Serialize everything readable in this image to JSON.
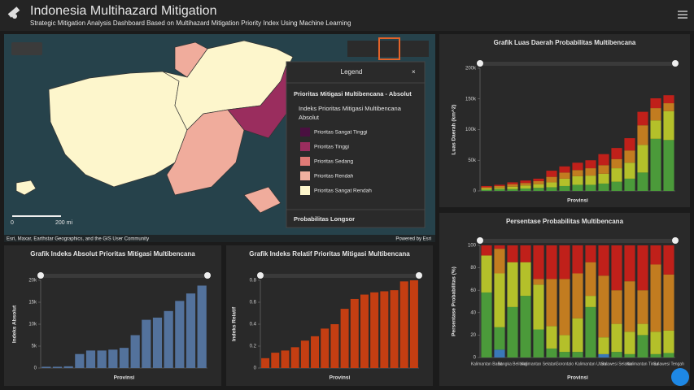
{
  "header": {
    "title": "Indonesia Multihazard Mitigation",
    "subtitle": "Strategic Mitigation Analysis Dashboard Based on Multihazard Mitigation Priority Index Using Machine Learning"
  },
  "map": {
    "attribution": "Esri, Maxar, Earthstar Geographics, and the GIS User Community",
    "powered": "Powered by Esri",
    "scale_start": "0",
    "scale_end": "200 mi"
  },
  "legend": {
    "title": "Legend",
    "layer": "Prioritas Mitigasi Multibencana - Absolut",
    "field": [
      "Indeks Prioritas Mitigasi Multibencana",
      "Absolut"
    ],
    "items": [
      "Prioritas Sangat Tinggi",
      "Prioritas Tinggi",
      "Prioritas Sedang",
      "Prioritas Rendah",
      "Prioritas Sangat Rendah"
    ],
    "next_layer": "Probabilitas Longsor"
  },
  "chart_data": [
    {
      "type": "bar",
      "title": "Grafik Luas Daerah Probabilitas Multibencana",
      "y_label": "Luas Daerah (km^2)",
      "x_label": "Provinsi",
      "ylim": [
        0,
        200000
      ],
      "yticks": [
        0,
        {
          "value": 50000,
          "label": "50k"
        },
        {
          "value": 100000,
          "label": "100k"
        },
        {
          "value": 150000,
          "label": "150k"
        },
        {
          "value": 200000,
          "label": "200k"
        }
      ],
      "series": [
        {
          "color": "#4b9a3a",
          "values": [
            2000,
            3000,
            3000,
            4000,
            5000,
            6000,
            8000,
            10000,
            10000,
            12000,
            15000,
            20000,
            30000,
            85000,
            83000
          ]
        },
        {
          "color": "#b4c02a",
          "values": [
            2000,
            2000,
            4000,
            5000,
            6000,
            8000,
            12000,
            14000,
            15000,
            16000,
            22000,
            26000,
            45000,
            30000,
            47000
          ]
        },
        {
          "color": "#c27c20",
          "values": [
            2000,
            3000,
            4000,
            4000,
            5000,
            9000,
            10000,
            10000,
            12000,
            14000,
            15000,
            20000,
            32000,
            20000,
            13000
          ]
        },
        {
          "color": "#c0201a",
          "values": [
            2000,
            2000,
            3000,
            4000,
            4000,
            10000,
            10000,
            12000,
            13000,
            18000,
            18000,
            20000,
            22000,
            16000,
            13000
          ]
        }
      ]
    },
    {
      "type": "bar",
      "title": "Persentase Probabilitas Multibencana",
      "y_label": "Persentase Probabilitas (%)",
      "x_label": "Provinsi",
      "categories": [
        "Kalimantan Barat",
        null,
        "Bangka Belitung",
        null,
        "Kalimantan Selatan",
        null,
        "Gorontalo",
        null,
        "Kalimantan Utara",
        null,
        "Sulawesi Selatan",
        null,
        "Kalimantan Timur",
        null,
        "Sulawesi Tengah"
      ],
      "ylim": [
        0,
        100
      ],
      "yticks": [
        0,
        20,
        40,
        60,
        80,
        100
      ],
      "series": [
        {
          "color": "#3a78b8",
          "values": [
            0,
            7,
            0,
            0,
            0,
            0,
            0,
            0,
            0,
            3,
            0,
            0,
            0,
            0,
            0
          ]
        },
        {
          "color": "#4b9a3a",
          "values": [
            58,
            20,
            45,
            55,
            25,
            8,
            5,
            5,
            45,
            0,
            5,
            3,
            20,
            3,
            4
          ]
        },
        {
          "color": "#b4c02a",
          "values": [
            33,
            48,
            40,
            30,
            40,
            20,
            15,
            30,
            10,
            15,
            25,
            20,
            10,
            20,
            20
          ]
        },
        {
          "color": "#c27c20",
          "values": [
            0,
            22,
            0,
            0,
            5,
            42,
            50,
            40,
            30,
            55,
            30,
            45,
            30,
            60,
            50
          ]
        },
        {
          "color": "#c0201a",
          "values": [
            9,
            3,
            15,
            15,
            30,
            30,
            30,
            25,
            15,
            27,
            40,
            32,
            40,
            17,
            26
          ]
        }
      ]
    },
    {
      "type": "bar",
      "title": "Grafik Indeks Absolut Prioritas Mitigasi Multibencana",
      "y_label": "Indeks Absolut",
      "x_label": "Provinsi",
      "ylim": [
        0,
        20000
      ],
      "yticks": [
        0,
        {
          "value": 5000,
          "label": "5k"
        },
        {
          "value": 10000,
          "label": "10k"
        },
        {
          "value": 15000,
          "label": "15k"
        },
        {
          "value": 20000,
          "label": "20k"
        }
      ],
      "color": "#53729c",
      "values": [
        300,
        300,
        400,
        3200,
        4000,
        4000,
        4200,
        4600,
        7500,
        11000,
        11500,
        13000,
        15300,
        17000,
        18800
      ]
    },
    {
      "type": "bar",
      "title": "Grafik Indeks Relatif Prioritas Mitigasi Multibencana",
      "y_label": "Indeks Relatif",
      "x_label": "Provinsi",
      "ylim": [
        0,
        0.8
      ],
      "yticks": [
        0,
        0.2,
        0.4,
        0.6,
        0.8
      ],
      "color": "#c43e12",
      "values": [
        0.09,
        0.14,
        0.16,
        0.19,
        0.25,
        0.29,
        0.36,
        0.4,
        0.54,
        0.63,
        0.67,
        0.69,
        0.7,
        0.71,
        0.79,
        0.8
      ]
    }
  ]
}
